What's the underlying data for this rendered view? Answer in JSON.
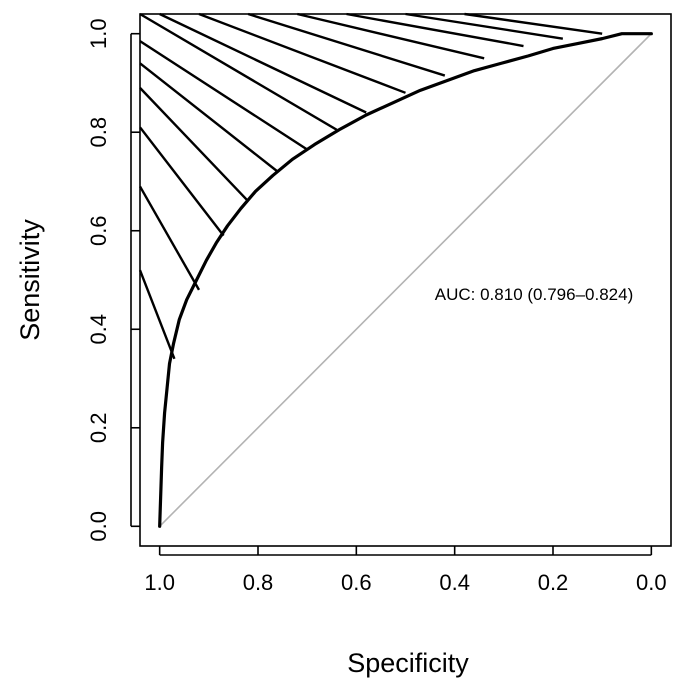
{
  "chart_data": {
    "type": "line",
    "xlabel": "Specificity",
    "ylabel": "Sensitivity",
    "x_reversed": true,
    "xlim": [
      1.04,
      -0.04
    ],
    "ylim": [
      -0.04,
      1.04
    ],
    "x_ticks": [
      1.0,
      0.8,
      0.6,
      0.4,
      0.2,
      0.0
    ],
    "x_tick_labels": [
      "1.0",
      "0.8",
      "0.6",
      "0.4",
      "0.2",
      "0.0"
    ],
    "y_ticks": [
      0.0,
      0.2,
      0.4,
      0.6,
      0.8,
      1.0
    ],
    "y_tick_labels": [
      "0.0",
      "0.2",
      "0.4",
      "0.6",
      "0.8",
      "1.0"
    ],
    "grid": false,
    "annotation": "AUC: 0.810 (0.796–0.824)",
    "diagonal": {
      "from": [
        1.0,
        0.0
      ],
      "to": [
        0.0,
        1.0
      ],
      "color": "#b3b3b3"
    },
    "roc_curve": {
      "color": "#000000",
      "specificity": [
        1.0,
        0.998,
        0.996,
        0.994,
        0.99,
        0.985,
        0.98,
        0.972,
        0.96,
        0.945,
        0.925,
        0.905,
        0.885,
        0.862,
        0.835,
        0.805,
        0.77,
        0.73,
        0.685,
        0.635,
        0.58,
        0.525,
        0.47,
        0.415,
        0.36,
        0.305,
        0.25,
        0.2,
        0.15,
        0.1,
        0.06,
        0.0
      ],
      "sensitivity": [
        0.0,
        0.06,
        0.12,
        0.17,
        0.23,
        0.28,
        0.33,
        0.37,
        0.42,
        0.46,
        0.5,
        0.54,
        0.575,
        0.61,
        0.645,
        0.68,
        0.712,
        0.745,
        0.775,
        0.805,
        0.835,
        0.86,
        0.885,
        0.905,
        0.925,
        0.94,
        0.955,
        0.97,
        0.98,
        0.99,
        1.0,
        1.0
      ]
    },
    "ci_hatch": {
      "color": "#000000",
      "lines": [
        {
          "x1": 1.04,
          "y1": 0.52,
          "x2": 0.97,
          "y2": 0.34
        },
        {
          "x1": 1.04,
          "y1": 0.69,
          "x2": 0.92,
          "y2": 0.48
        },
        {
          "x1": 1.04,
          "y1": 0.81,
          "x2": 0.87,
          "y2": 0.59
        },
        {
          "x1": 1.04,
          "y1": 0.89,
          "x2": 0.82,
          "y2": 0.66
        },
        {
          "x1": 1.04,
          "y1": 0.94,
          "x2": 0.76,
          "y2": 0.72
        },
        {
          "x1": 1.04,
          "y1": 0.985,
          "x2": 0.7,
          "y2": 0.765
        },
        {
          "x1": 1.04,
          "y1": 1.04,
          "x2": 0.64,
          "y2": 0.805
        },
        {
          "x1": 1.0,
          "y1": 1.04,
          "x2": 0.58,
          "y2": 0.84
        },
        {
          "x1": 0.92,
          "y1": 1.04,
          "x2": 0.5,
          "y2": 0.88
        },
        {
          "x1": 0.82,
          "y1": 1.04,
          "x2": 0.42,
          "y2": 0.915
        },
        {
          "x1": 0.72,
          "y1": 1.04,
          "x2": 0.34,
          "y2": 0.95
        },
        {
          "x1": 0.62,
          "y1": 1.04,
          "x2": 0.26,
          "y2": 0.975
        },
        {
          "x1": 0.5,
          "y1": 1.04,
          "x2": 0.18,
          "y2": 0.99
        },
        {
          "x1": 0.38,
          "y1": 1.04,
          "x2": 0.1,
          "y2": 1.0
        }
      ]
    }
  }
}
